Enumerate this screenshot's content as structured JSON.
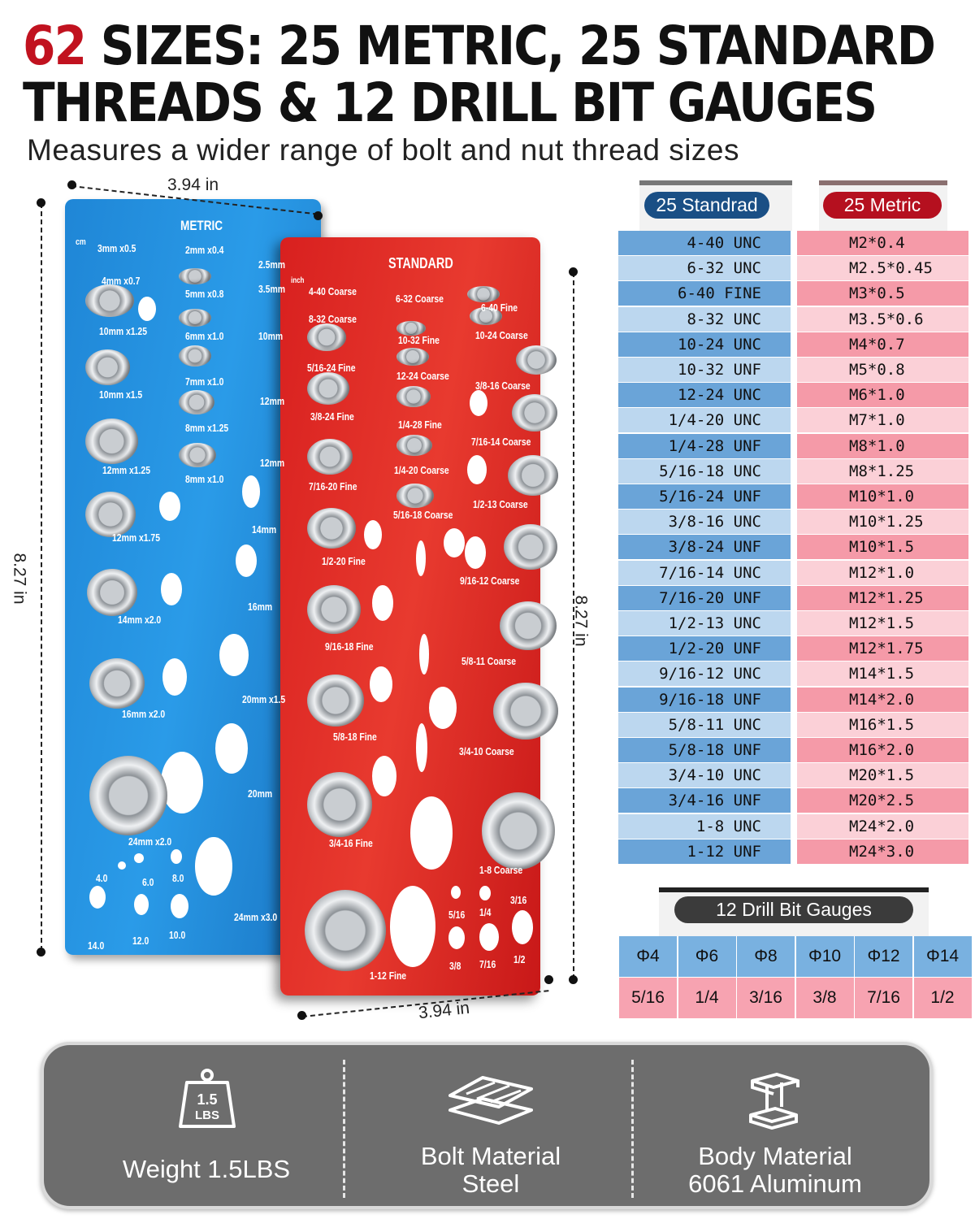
{
  "headline": {
    "number": "62",
    "line1_rest": " SIZES: 25 METRIC, 25 STANDARD",
    "line2": "THREADS & 12 DRILL BIT GAUGES",
    "subtitle": "Measures a wider range of bolt and nut thread sizes"
  },
  "dimensions": {
    "width_top": "3.94 in",
    "height_left": "8.27 in",
    "height_right": "8.27 in",
    "width_bottom": "3.94 in"
  },
  "metric_plate": {
    "title": "METRIC",
    "unit": "cm",
    "labels": [
      "3mm x0.5",
      "2mm x0.4",
      "2.5mm",
      "4mm x0.7",
      "5mm x0.8",
      "3.5mm",
      "10mm x1.25",
      "6mm x1.0",
      "10mm",
      "10mm x1.5",
      "7mm x1.0",
      "12mm",
      "8mm x1.25",
      "12mm x1.25",
      "8mm x1.0",
      "12mm",
      "12mm x1.75",
      "14mm",
      "14mm x2.0",
      "16mm",
      "16mm x2.0",
      "20mm x1.5",
      "20mm",
      "24mm x2.0",
      "24mm x3.0",
      "4.0",
      "6.0",
      "8.0",
      "14.0",
      "12.0",
      "10.0"
    ]
  },
  "standard_plate": {
    "title": "STANDARD",
    "unit": "inch",
    "labels": [
      "4-40 Coarse",
      "6-32 Coarse",
      "6-40 Fine",
      "8-32 Coarse",
      "10-32 Fine",
      "10-24 Coarse",
      "5/16-24 Fine",
      "12-24 Coarse",
      "3/8-16 Coarse",
      "3/8-24 Fine",
      "1/4-28 Fine",
      "7/16-14 Coarse",
      "7/16-20 Fine",
      "1/4-20 Coarse",
      "1/2-13 Coarse",
      "5/16-18 Coarse",
      "1/2-20 Fine",
      "9/16-12 Coarse",
      "9/16-18 Fine",
      "5/8-11 Coarse",
      "5/8-18 Fine",
      "3/4-10 Coarse",
      "3/4-16 Fine",
      "1-8 Coarse",
      "1-12 Fine",
      "3/16",
      "5/16",
      "1/4",
      "3/8",
      "7/16",
      "1/2"
    ]
  },
  "thread_table": {
    "standard_header": "25 Standrad",
    "metric_header": "25 Metric",
    "standard": [
      "4-40 UNC",
      "6-32 UNC",
      "6-40 FINE",
      "8-32 UNC",
      "10-24 UNC",
      "10-32 UNF",
      "12-24 UNC",
      "1/4-20 UNC",
      "1/4-28 UNF",
      "5/16-18 UNC",
      "5/16-24 UNF",
      "3/8-16 UNC",
      "3/8-24 UNF",
      "7/16-14 UNC",
      "7/16-20 UNF",
      "1/2-13 UNC",
      "1/2-20 UNF",
      "9/16-12 UNC",
      "9/16-18 UNF",
      "5/8-11 UNC",
      "5/8-18 UNF",
      "3/4-10 UNC",
      "3/4-16 UNF",
      "1-8 UNC",
      "1-12 UNF"
    ],
    "metric": [
      "M2*0.4",
      "M2.5*0.45",
      "M3*0.5",
      "M3.5*0.6",
      "M4*0.7",
      "M5*0.8",
      "M6*1.0",
      "M7*1.0",
      "M8*1.0",
      "M8*1.25",
      "M10*1.0",
      "M10*1.25",
      "M10*1.5",
      "M12*1.0",
      "M12*1.25",
      "M12*1.5",
      "M12*1.75",
      "M14*1.5",
      "M14*2.0",
      "M16*1.5",
      "M16*2.0",
      "M20*1.5",
      "M20*2.5",
      "M24*2.0",
      "M24*3.0"
    ]
  },
  "drill_table": {
    "header": "12 Drill Bit Gauges",
    "metric": [
      "Φ4",
      "Φ6",
      "Φ8",
      "Φ10",
      "Φ12",
      "Φ14"
    ],
    "imperial": [
      "5/16",
      "1/4",
      "3/16",
      "3/8",
      "7/16",
      "1/2"
    ]
  },
  "features": [
    {
      "icon": "weight-icon",
      "icon_text": "1.5",
      "icon_unit": "LBS",
      "label": "Weight 1.5LBS"
    },
    {
      "icon": "steel-plates-icon",
      "label": "Bolt Material",
      "value": "Steel"
    },
    {
      "icon": "i-beam-icon",
      "label": "Body Material",
      "value": "6061 Aluminum"
    }
  ],
  "colors": {
    "accent_red": "#c1121f",
    "standard_blue": "#1f5f9e",
    "metric_red": "#c8102e",
    "row_blue_dark": "#6aa4d8",
    "row_blue_light": "#bcd7ef",
    "row_pink_dark": "#f59aa8",
    "row_pink_light": "#fbd0d7",
    "panel_gray": "#6d6d6d"
  }
}
